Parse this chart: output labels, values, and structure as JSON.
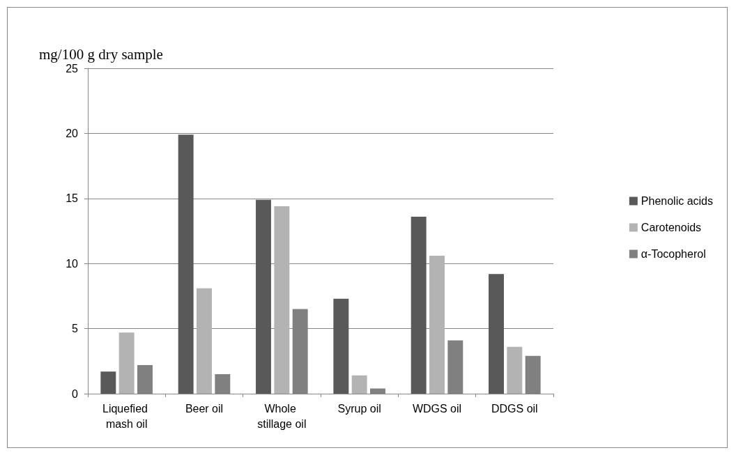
{
  "chart_data": {
    "type": "bar",
    "ylabel": "mg/100 g dry sample",
    "categories": [
      "Liquefied mash oil",
      "Beer oil",
      "Whole stillage oil",
      "Syrup oil",
      "WDGS oil",
      "DDGS oil"
    ],
    "series": [
      {
        "name": "Phenolic acids",
        "color": "#595959",
        "values": [
          1.7,
          19.9,
          14.9,
          7.3,
          13.6,
          9.2
        ]
      },
      {
        "name": "Carotenoids",
        "color": "#b3b3b3",
        "values": [
          4.7,
          8.1,
          14.4,
          1.4,
          10.6,
          3.6
        ]
      },
      {
        "name": "α-Tocopherol",
        "color": "#808080",
        "values": [
          2.2,
          1.5,
          6.5,
          0.4,
          4.1,
          2.9
        ]
      }
    ],
    "ylim": [
      0,
      25
    ],
    "yticks": [
      0,
      5,
      10,
      15,
      20,
      25
    ],
    "grid": "y",
    "legend": "right"
  }
}
